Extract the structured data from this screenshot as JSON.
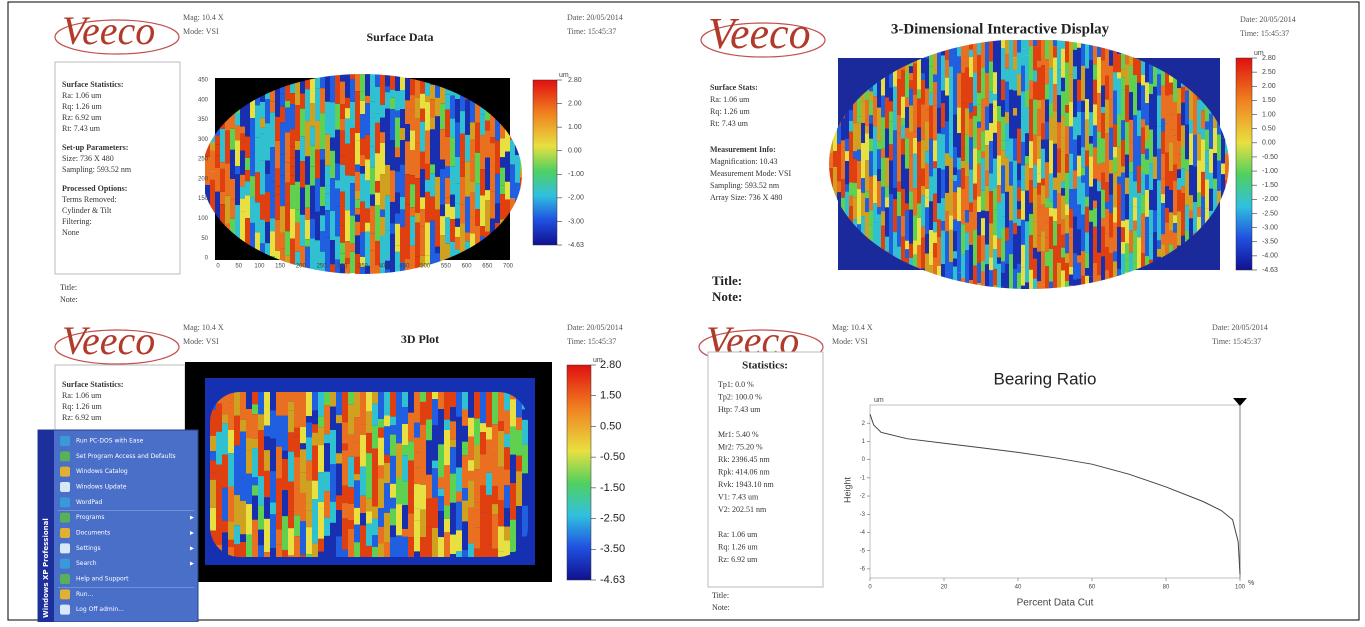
{
  "panels": [
    {
      "logo": "Veeco",
      "header_left": [
        "Mag: 10.4 X",
        "Mode: VSI"
      ],
      "title": "Surface Data",
      "header_right": [
        "Date: 20/05/2014",
        "Time: 15:45:37"
      ],
      "stats": [
        {
          "heading": "Surface Statistics:",
          "lines": [
            "Ra: 1.06 um",
            "Rq: 1.26 um",
            "Rz: 6.92 um",
            "Rt: 7.43 um"
          ]
        },
        {
          "heading": "Set-up Parameters:",
          "lines": [
            "Size: 736 X 480",
            "Sampling: 593.52 nm"
          ]
        },
        {
          "heading": "Processed Options:",
          "lines": [
            "Terms Removed:",
            "Cylinder & Tilt",
            "Filtering:",
            "None"
          ]
        }
      ],
      "y_ticks": [
        "450",
        "400",
        "350",
        "300",
        "250",
        "200",
        "150",
        "100",
        "50",
        "0"
      ],
      "x_ticks": [
        "0",
        "50",
        "100",
        "150",
        "200",
        "250",
        "300",
        "350",
        "400",
        "450",
        "500",
        "550",
        "600",
        "650",
        "700"
      ],
      "colorbar_unit": "um",
      "colorbar_ticks": [
        "2.80",
        "2.00",
        "1.00",
        "0.00",
        "-1.00",
        "-2.00",
        "-3.00",
        "-4.63"
      ],
      "footer": [
        "Title:",
        "Note:"
      ]
    },
    {
      "logo": "Veeco",
      "title": "3-Dimensional Interactive Display",
      "header_right": [
        "Date: 20/05/2014",
        "Time: 15:45:37"
      ],
      "stats": [
        {
          "heading": "Surface Stats:",
          "lines": [
            "Ra: 1.06 um",
            "Rq: 1.26 um",
            "Rt: 7.43 um"
          ]
        },
        {
          "heading": "Measurement Info:",
          "lines": [
            "Magnification: 10.43",
            "Measurement Mode: VSI",
            "Sampling: 593.52 nm",
            "Array Size: 736 X 480"
          ]
        }
      ],
      "colorbar_unit": "um",
      "colorbar_ticks": [
        "2.80",
        "2.50",
        "2.00",
        "1.50",
        "1.00",
        "0.50",
        "0.00",
        "-0.50",
        "-1.00",
        "-1.50",
        "-2.00",
        "-2.50",
        "-3.00",
        "-3.50",
        "-4.00",
        "-4.63"
      ],
      "footer": [
        "Title:",
        "Note:"
      ]
    },
    {
      "logo": "Veeco",
      "header_left": [
        "Mag: 10.4 X",
        "Mode: VSI"
      ],
      "title": "3D Plot",
      "header_right": [
        "Date: 20/05/2014",
        "Time: 15:45:37"
      ],
      "stats": [
        {
          "heading": "Surface Statistics:",
          "lines": [
            "Ra: 1.06 um",
            "Rq: 1.26 um",
            "Rz: 6.92 um"
          ]
        }
      ],
      "colorbar_unit": "um",
      "colorbar_ticks": [
        "2.80",
        "1.50",
        "0.50",
        "-0.50",
        "-1.50",
        "-2.50",
        "-3.50",
        "-4.63"
      ]
    },
    {
      "logo": "Veeco",
      "header_left": [
        "Mag: 10.4 X",
        "Mode: VSI"
      ],
      "header_right": [
        "Date: 20/05/2014",
        "Time: 15:45:37"
      ],
      "stats": [
        {
          "heading": "Statistics:",
          "lines": [
            "Tp1: 0.0 %",
            "Tp2: 100.0 %",
            "Htp: 7.43 um",
            "",
            "Mr1: 5.40 %",
            "Mr2: 75.20 %",
            "Rk: 2396.45 nm",
            "Rpk: 414.06 nm",
            "Rvk: 1943.10 nm",
            "V1: 7.43 um",
            "V2: 202.51 nm",
            "",
            "Ra: 1.06 um",
            "Rq: 1.26 um",
            "Rz: 6.92 um"
          ]
        }
      ],
      "footer": [
        "Title:",
        "Note:"
      ],
      "chart": {
        "type": "line",
        "title": "Bearing Ratio",
        "x_label": "Percent Data Cut",
        "y_label": "Height",
        "x_unit": "%",
        "y_unit": "um",
        "x": [
          0,
          1,
          3,
          10,
          20,
          30,
          40,
          50,
          60,
          70,
          80,
          90,
          95,
          98,
          99.5,
          100
        ],
        "values": [
          2.5,
          1.9,
          1.5,
          1.15,
          0.9,
          0.65,
          0.4,
          0.1,
          -0.25,
          -0.8,
          -1.5,
          -2.3,
          -2.8,
          -3.3,
          -4.5,
          -6.3
        ],
        "xlim": [
          0,
          100
        ],
        "ylim": [
          -6.5,
          3
        ],
        "xticks": [
          0,
          20,
          40,
          60,
          80,
          100
        ],
        "yticks": [
          2,
          1,
          0,
          -1,
          -2,
          -3,
          -4,
          -5,
          -6
        ],
        "color": "#444444"
      }
    }
  ],
  "start_menu": {
    "banner": "Windows XP Professional",
    "items": [
      "Run PC-DOS with Ease",
      "Set Program Access and Defaults",
      "Windows Catalog",
      "Windows Update",
      "WordPad",
      "Programs",
      "Documents",
      "Settings",
      "Search",
      "Help and Support",
      "Run...",
      "Log Off admin..."
    ]
  }
}
